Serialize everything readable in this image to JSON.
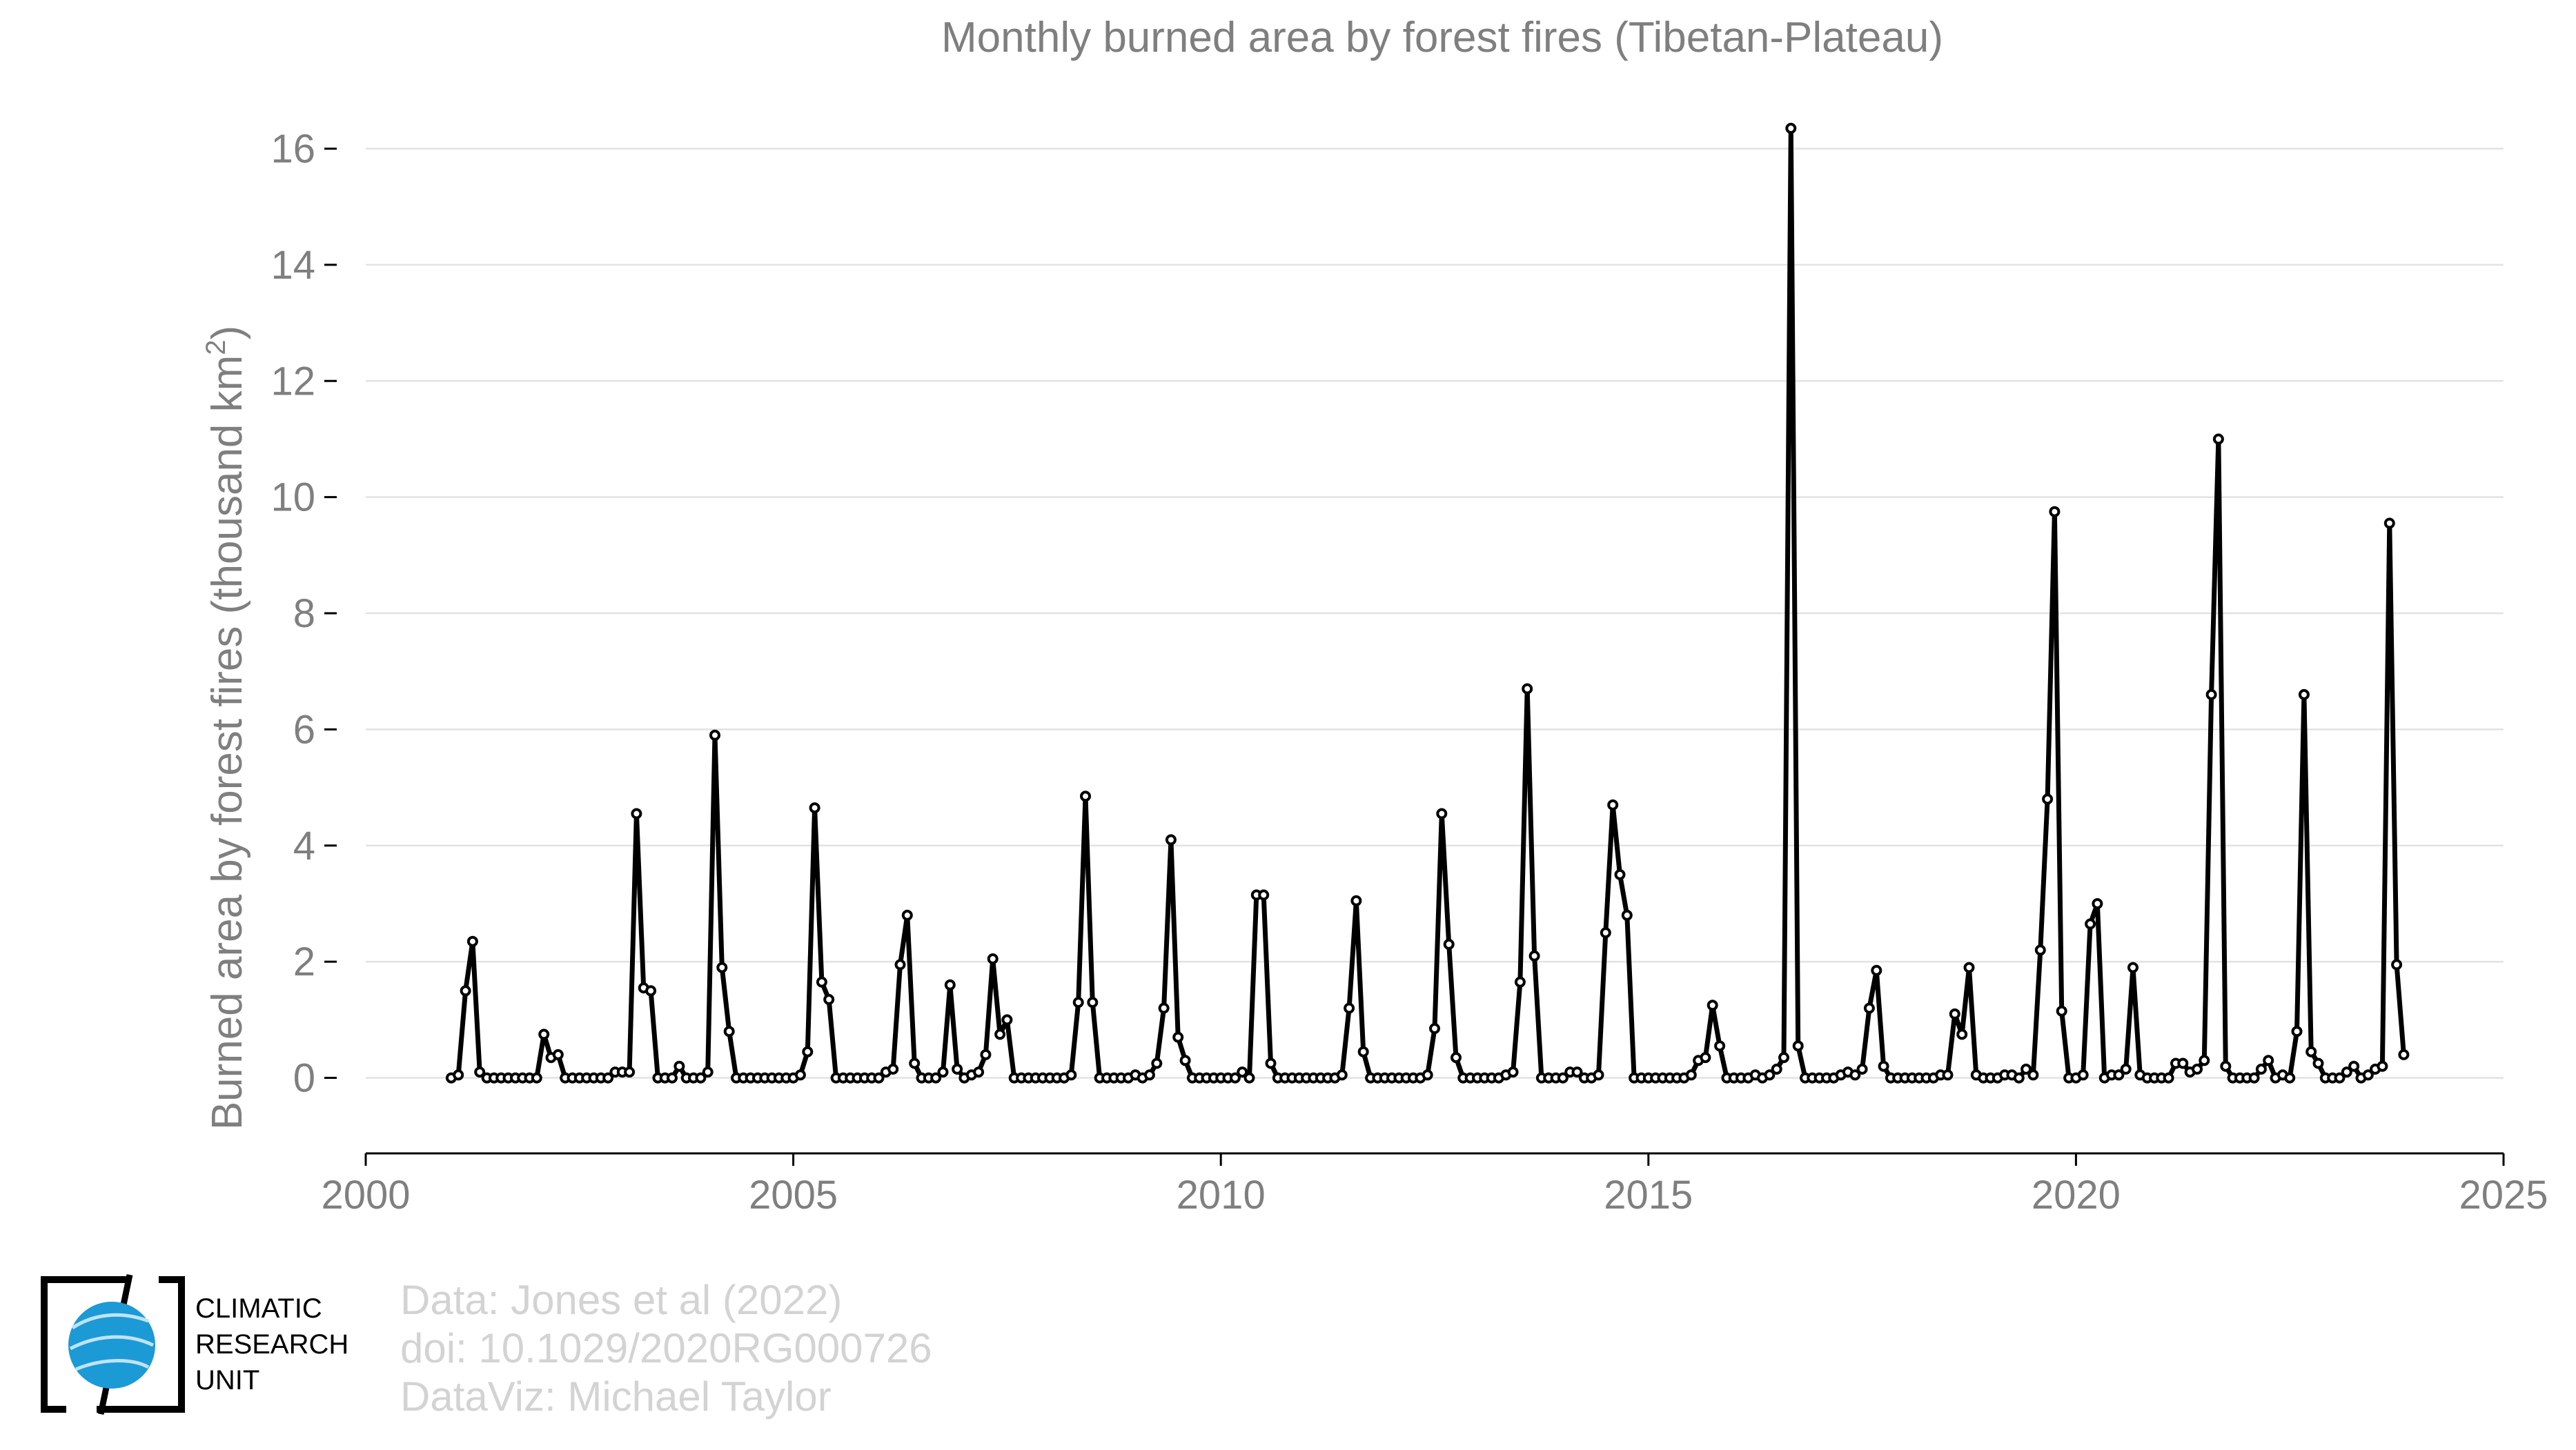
{
  "chart_data": {
    "type": "line",
    "title": "Monthly burned area by forest fires (Tibetan-Plateau)",
    "xlabel": "",
    "ylabel": "Burned area by forest fires (thousand km",
    "ylabel_superscript": "2",
    "ylabel_suffix": ")",
    "xlim": [
      2000,
      2025
    ],
    "ylim": [
      -1.3,
      16.6
    ],
    "x_ticks": [
      2000,
      2005,
      2010,
      2015,
      2020,
      2025
    ],
    "y_ticks": [
      0,
      2,
      4,
      6,
      8,
      10,
      12,
      14,
      16
    ],
    "grid": true,
    "legend": "none",
    "series_color": "#000000",
    "start": "2001-01",
    "frequency": "monthly",
    "series": [
      {
        "values": [
          0.0,
          0.05,
          1.5,
          2.35,
          0.1,
          0.0,
          0.0,
          0.0,
          0.0,
          0.0,
          0.0,
          0.0,
          0.0,
          0.75,
          0.35,
          0.4,
          0.0,
          0.0,
          0.0,
          0.0,
          0.0,
          0.0,
          0.0,
          0.1,
          0.1,
          0.1,
          4.55,
          1.55,
          1.5,
          0.0,
          0.0,
          0.0,
          0.2,
          0.0,
          0.0,
          0.0,
          0.1,
          5.9,
          1.9,
          0.8,
          0.0,
          0.0,
          0.0,
          0.0,
          0.0,
          0.0,
          0.0,
          0.0,
          0.0,
          0.05,
          0.45,
          4.65,
          1.65,
          1.35,
          0.0,
          0.0,
          0.0,
          0.0,
          0.0,
          0.0,
          0.0,
          0.1,
          0.15,
          1.95,
          2.8,
          0.25,
          0.0,
          0.0,
          0.0,
          0.1,
          1.6,
          0.15,
          0.0,
          0.05,
          0.1,
          0.4,
          2.05,
          0.75,
          1.0,
          0.0,
          0.0,
          0.0,
          0.0,
          0.0,
          0.0,
          0.0,
          0.0,
          0.05,
          1.3,
          4.85,
          1.3,
          0.0,
          0.0,
          0.0,
          0.0,
          0.0,
          0.05,
          0.0,
          0.05,
          0.25,
          1.2,
          4.1,
          0.7,
          0.3,
          0.0,
          0.0,
          0.0,
          0.0,
          0.0,
          0.0,
          0.0,
          0.1,
          0.0,
          3.15,
          3.15,
          0.25,
          0.0,
          0.0,
          0.0,
          0.0,
          0.0,
          0.0,
          0.0,
          0.0,
          0.0,
          0.05,
          1.2,
          3.05,
          0.45,
          0.0,
          0.0,
          0.0,
          0.0,
          0.0,
          0.0,
          0.0,
          0.0,
          0.05,
          0.85,
          4.55,
          2.3,
          0.35,
          0.0,
          0.0,
          0.0,
          0.0,
          0.0,
          0.0,
          0.05,
          0.1,
          1.65,
          6.7,
          2.1,
          0.0,
          0.0,
          0.0,
          0.0,
          0.1,
          0.1,
          0.0,
          0.0,
          0.05,
          2.5,
          4.7,
          3.5,
          2.8,
          0.0,
          0.0,
          0.0,
          0.0,
          0.0,
          0.0,
          0.0,
          0.0,
          0.05,
          0.3,
          0.35,
          1.25,
          0.55,
          0.0,
          0.0,
          0.0,
          0.0,
          0.05,
          0.0,
          0.05,
          0.15,
          0.35,
          16.35,
          0.55,
          0.0,
          0.0,
          0.0,
          0.0,
          0.0,
          0.05,
          0.1,
          0.05,
          0.15,
          1.2,
          1.85,
          0.2,
          0.0,
          0.0,
          0.0,
          0.0,
          0.0,
          0.0,
          0.0,
          0.05,
          0.05,
          1.1,
          0.75,
          1.9,
          0.05,
          0.0,
          0.0,
          0.0,
          0.05,
          0.05,
          0.0,
          0.15,
          0.05,
          2.2,
          4.8,
          9.75,
          1.15,
          0.0,
          0.0,
          0.05,
          2.65,
          3.0,
          0.0,
          0.05,
          0.05,
          0.15,
          1.9,
          0.05,
          0.0,
          0.0,
          0.0,
          0.0,
          0.25,
          0.25,
          0.1,
          0.15,
          0.3,
          6.6,
          11.0,
          0.2,
          0.0,
          0.0,
          0.0,
          0.0,
          0.15,
          0.3,
          0.0,
          0.05,
          0.0,
          0.8,
          6.6,
          0.45,
          0.25,
          0.0,
          0.0,
          0.0,
          0.1,
          0.2,
          0.0,
          0.05,
          0.15,
          0.2,
          9.55,
          1.95,
          0.4
        ]
      }
    ]
  },
  "credits": {
    "line1": "Data: Jones et al (2022)",
    "line2": "doi: 10.1029/2020RG000726",
    "line3": "DataViz: Michael Taylor"
  },
  "logo": {
    "line1": "CLIMATIC",
    "line2": "RESEARCH",
    "line3": "UNIT",
    "globe_color": "#1b9ad6"
  }
}
